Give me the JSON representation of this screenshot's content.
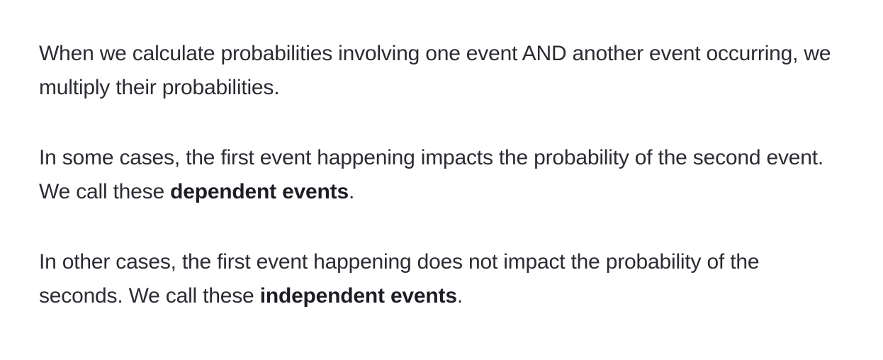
{
  "paragraphs": [
    {
      "text": "When we calculate probabilities involving one event AND another event occurring, we multiply their probabilities."
    },
    {
      "before": "In some cases, the first event happening impacts the probability of the second event. We call these ",
      "bold": "dependent events",
      "after": "."
    },
    {
      "before": "In other cases, the first event happening does not impact the probability of the seconds. We call these ",
      "bold": "independent events",
      "after": "."
    }
  ]
}
